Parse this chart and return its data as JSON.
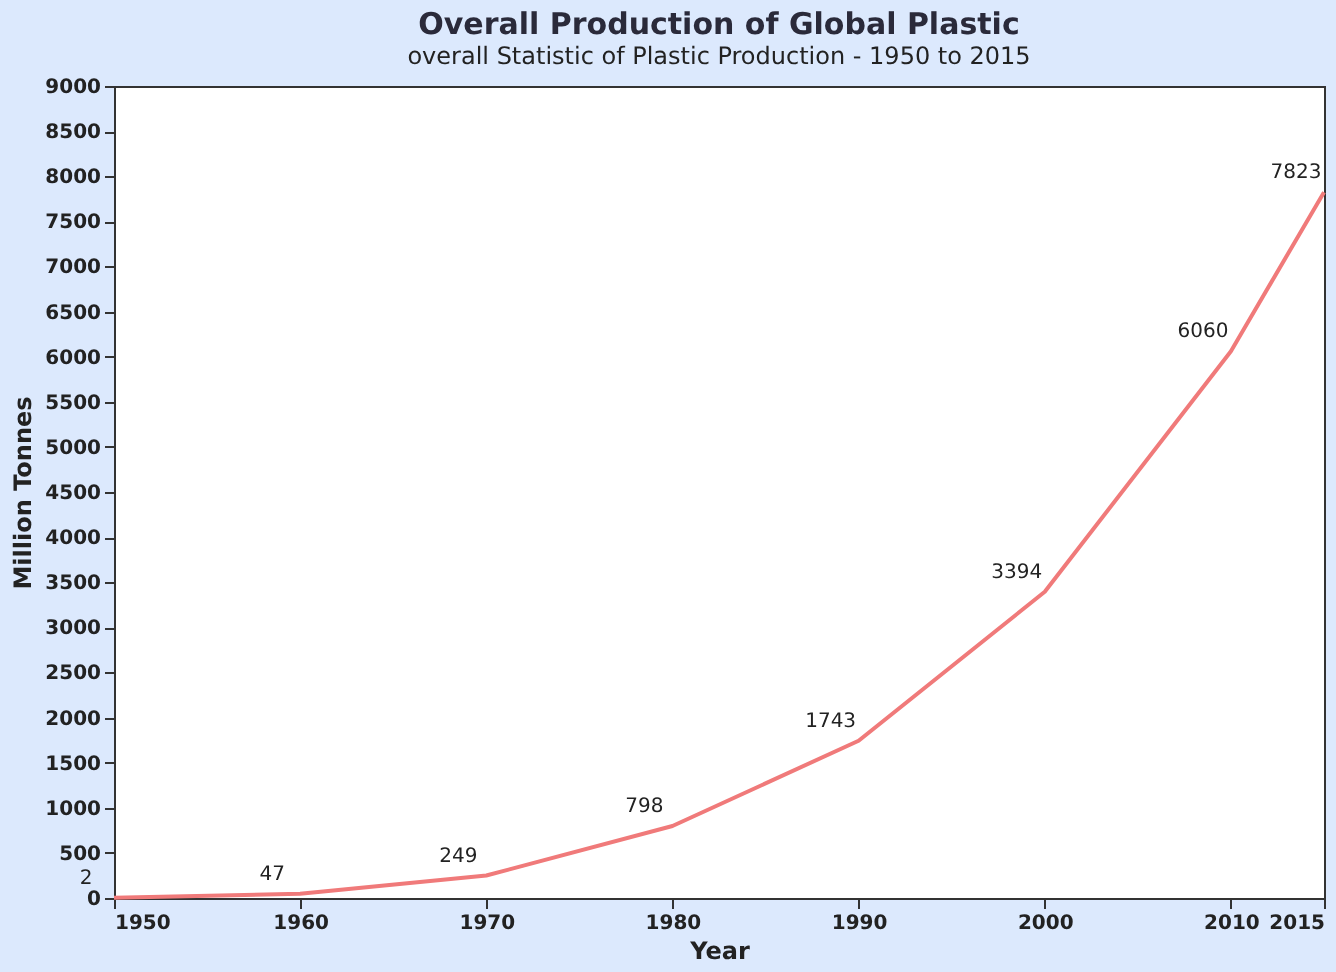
{
  "chart_data": {
    "type": "line",
    "title": "Overall Production of Global Plastic",
    "subtitle": "overall Statistic of Plastic Production - 1950 to 2015",
    "xlabel": "Year",
    "ylabel": "Million Tonnes",
    "x": [
      1950,
      1960,
      1970,
      1980,
      1990,
      2000,
      2010,
      2015
    ],
    "series": [
      {
        "color": "#f07a7a",
        "values": [
          2,
          47,
          249,
          798,
          1743,
          3394,
          6060,
          7823
        ]
      }
    ],
    "xlim": [
      1950,
      2015
    ],
    "xticks": [
      1950,
      1960,
      1970,
      1980,
      1990,
      2000,
      2010,
      2015
    ],
    "ylim": [
      0,
      9000
    ],
    "yticks": [
      0,
      500,
      1000,
      1500,
      2000,
      2500,
      3000,
      3500,
      4000,
      4500,
      5000,
      5500,
      6000,
      6500,
      7000,
      7500,
      8000,
      8500,
      9000
    ],
    "grid": false,
    "marker": "none",
    "line_style": "solid",
    "data_labels": true
  }
}
